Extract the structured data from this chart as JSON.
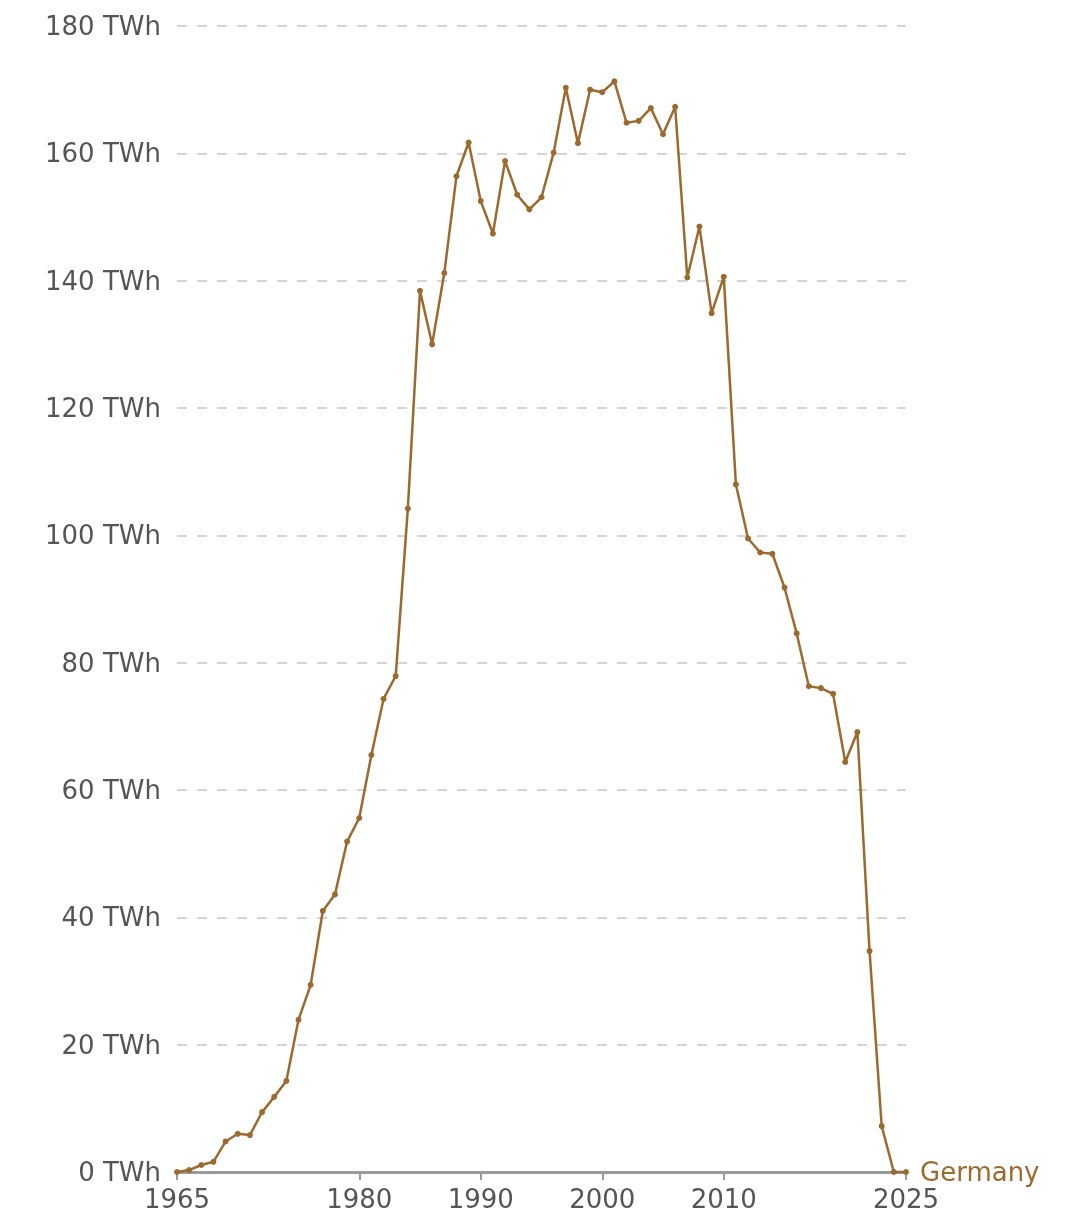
{
  "chart_data": {
    "type": "line",
    "x": [
      1965,
      1966,
      1967,
      1968,
      1969,
      1970,
      1971,
      1972,
      1973,
      1974,
      1975,
      1976,
      1977,
      1978,
      1979,
      1980,
      1981,
      1982,
      1983,
      1984,
      1985,
      1986,
      1987,
      1988,
      1989,
      1990,
      1991,
      1992,
      1993,
      1994,
      1995,
      1996,
      1997,
      1998,
      1999,
      2000,
      2001,
      2002,
      2003,
      2004,
      2005,
      2006,
      2007,
      2008,
      2009,
      2010,
      2011,
      2012,
      2013,
      2014,
      2015,
      2016,
      2017,
      2018,
      2019,
      2020,
      2021,
      2022,
      2023,
      2024,
      2025
    ],
    "series": [
      {
        "name": "Germany",
        "color": "#9c6a2e",
        "values": [
          0,
          0.3,
          1.1,
          1.6,
          4.8,
          6.0,
          5.8,
          9.4,
          11.8,
          14.3,
          23.9,
          29.4,
          41.0,
          43.6,
          51.9,
          55.6,
          65.5,
          74.3,
          77.9,
          104.2,
          138.4,
          130.0,
          141.2,
          156.4,
          161.7,
          152.5,
          147.4,
          158.8,
          153.5,
          151.2,
          153.1,
          160.1,
          170.3,
          161.6,
          170.0,
          169.6,
          171.3,
          164.8,
          165.1,
          167.1,
          163.0,
          167.3,
          140.5,
          148.5,
          134.9,
          140.6,
          108.0,
          99.5,
          97.3,
          97.1,
          91.8,
          84.6,
          76.3,
          76.0,
          75.1,
          64.4,
          69.1,
          34.7,
          7.2,
          0,
          0
        ]
      }
    ],
    "xlim": [
      1965,
      2025
    ],
    "xticks": [
      1965,
      1980,
      1990,
      2000,
      2010,
      2025
    ],
    "ylim": [
      0,
      180
    ],
    "yticks": [
      {
        "value": 0,
        "label": "0 TWh"
      },
      {
        "value": 20,
        "label": "20 TWh"
      },
      {
        "value": 40,
        "label": "40 TWh"
      },
      {
        "value": 60,
        "label": "60 TWh"
      },
      {
        "value": 80,
        "label": "80 TWh"
      },
      {
        "value": 100,
        "label": "100 TWh"
      },
      {
        "value": 120,
        "label": "120 TWh"
      },
      {
        "value": 140,
        "label": "140 TWh"
      },
      {
        "value": 160,
        "label": "160 TWh"
      },
      {
        "value": 180,
        "label": "180 TWh"
      }
    ],
    "grid": "y",
    "legend": false,
    "marker": "circle",
    "line_style": "solid"
  }
}
